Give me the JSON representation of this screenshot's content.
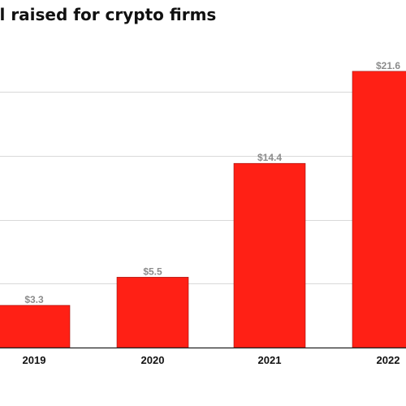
{
  "chart_data": {
    "type": "bar",
    "title": "al raised for crypto firms",
    "categories": [
      "2019",
      "2020",
      "2021",
      "2022"
    ],
    "values": [
      3.3,
      5.5,
      14.4,
      21.6
    ],
    "value_labels": [
      "$3.3",
      "$5.5",
      "$14.4",
      "$21.6"
    ],
    "xlabel": "",
    "ylabel": "",
    "ylim": [
      0,
      25
    ],
    "grid_y": [
      5,
      10,
      15,
      20
    ],
    "grid": true,
    "bar_color": "#ff2015"
  }
}
